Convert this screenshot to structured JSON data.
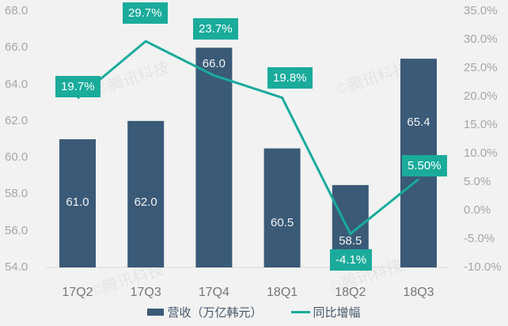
{
  "watermark": {
    "text": "©腾讯科技"
  },
  "colors": {
    "background": "#f2f2f2",
    "bar": "#3a5a77",
    "line": "#1aab9b",
    "label_box": "#1aab9b",
    "axis_line": "#d9d9d9",
    "axis_text": "#a6a6a6",
    "category_text": "#767676",
    "legend_text": "#46586a",
    "bar_label_text": "#f2f2f2"
  },
  "left_axis_ticks": [
    "68.0",
    "66.0",
    "64.0",
    "62.0",
    "60.0",
    "58.0",
    "56.0",
    "54.0"
  ],
  "right_axis_ticks": [
    "35.0%",
    "30.0%",
    "25.0%",
    "20.0%",
    "15.0%",
    "10.0%",
    "5.0%",
    "0.0%",
    "-5.0%",
    "-10.0%"
  ],
  "legend": {
    "bar_label": "营收（万亿韩元）",
    "line_label": "同比增幅"
  },
  "chart_data": {
    "type": "bar",
    "categories": [
      "17Q2",
      "17Q3",
      "17Q4",
      "18Q1",
      "18Q2",
      "18Q3"
    ],
    "series": [
      {
        "name": "营收（万亿韩元）",
        "type": "bar",
        "axis": "left",
        "values": [
          61.0,
          62.0,
          66.0,
          60.5,
          58.5,
          65.4
        ],
        "labels": [
          "61.0",
          "62.0",
          "66.0",
          "60.5",
          "58.5",
          "65.4"
        ]
      },
      {
        "name": "同比增幅",
        "type": "line",
        "axis": "right",
        "values": [
          19.7,
          29.7,
          23.7,
          19.8,
          -4.1,
          5.5
        ],
        "labels": [
          "19.7%",
          "29.7%",
          "23.7%",
          "19.8%",
          "-4.1%",
          "5.50%"
        ]
      }
    ],
    "left_axis": {
      "min": 54,
      "max": 68,
      "step": 2
    },
    "right_axis_pct": {
      "min": -10,
      "max": 35,
      "step": 5
    },
    "grid": false,
    "legend_position": "bottom"
  }
}
